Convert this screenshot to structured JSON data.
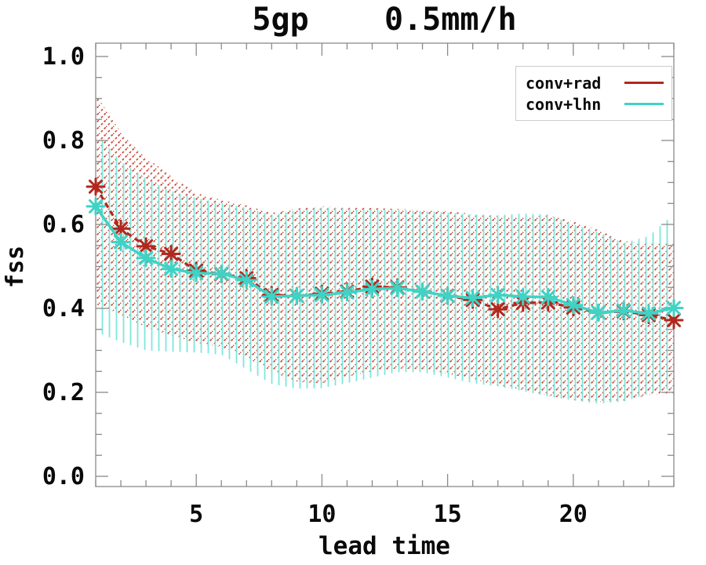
{
  "title": "5gp    0.5mm/h",
  "x_axis": {
    "label": "lead time",
    "major_ticks": [
      5,
      10,
      15,
      20
    ],
    "minor_tick_step": 1
  },
  "y_axis": {
    "label": "fss",
    "major_ticks": [
      0.0,
      0.2,
      0.4,
      0.6,
      0.8,
      1.0
    ],
    "minor_tick_step": 0.05
  },
  "legend": {
    "items": [
      {
        "label": "conv+rad",
        "color": "#b2281e"
      },
      {
        "label": "conv+lhn",
        "color": "#3fd3c5"
      }
    ]
  },
  "chart_data": {
    "type": "line",
    "title": "5gp    0.5mm/h",
    "xlabel": "lead time",
    "ylabel": "fss",
    "xlim": [
      1,
      24
    ],
    "ylim": [
      0.0,
      1.0
    ],
    "grid": false,
    "legend_position": "upper right",
    "x": [
      1,
      2,
      3,
      4,
      5,
      6,
      7,
      8,
      9,
      10,
      11,
      12,
      13,
      14,
      15,
      16,
      17,
      18,
      19,
      20,
      21,
      22,
      23,
      24
    ],
    "series": [
      {
        "name": "conv+rad",
        "color": "#b2281e",
        "line_style": "dashed",
        "marker": "asterisk",
        "hatch": "diagonal",
        "hatch_color": "#cc4a3a",
        "values": [
          0.69,
          0.59,
          0.548,
          0.53,
          0.49,
          0.482,
          0.472,
          0.432,
          0.43,
          0.435,
          0.44,
          0.452,
          0.45,
          0.44,
          0.43,
          0.42,
          0.398,
          0.413,
          0.414,
          0.402,
          0.39,
          0.393,
          0.384,
          0.372
        ],
        "band_upper": [
          0.91,
          0.82,
          0.76,
          0.715,
          0.675,
          0.658,
          0.645,
          0.627,
          0.638,
          0.643,
          0.641,
          0.639,
          0.637,
          0.634,
          0.631,
          0.625,
          0.619,
          0.617,
          0.622,
          0.607,
          0.587,
          0.56,
          0.556,
          0.558
        ],
        "band_lower": [
          0.41,
          0.385,
          0.355,
          0.335,
          0.318,
          0.308,
          0.283,
          0.25,
          0.225,
          0.222,
          0.238,
          0.25,
          0.257,
          0.255,
          0.244,
          0.232,
          0.216,
          0.206,
          0.192,
          0.182,
          0.177,
          0.18,
          0.194,
          0.196
        ]
      },
      {
        "name": "conv+lhn",
        "color": "#3fd3c5",
        "line_style": "solid",
        "marker": "asterisk",
        "hatch": "vertical",
        "hatch_color": "#7fe6da",
        "values": [
          0.643,
          0.558,
          0.52,
          0.494,
          0.484,
          0.483,
          0.467,
          0.428,
          0.43,
          0.432,
          0.438,
          0.446,
          0.448,
          0.44,
          0.43,
          0.425,
          0.432,
          0.428,
          0.427,
          0.408,
          0.39,
          0.395,
          0.388,
          0.401
        ],
        "band_upper": [
          0.82,
          0.75,
          0.71,
          0.68,
          0.663,
          0.651,
          0.64,
          0.622,
          0.634,
          0.64,
          0.638,
          0.636,
          0.634,
          0.632,
          0.628,
          0.624,
          0.622,
          0.626,
          0.624,
          0.6,
          0.582,
          0.556,
          0.572,
          0.625
        ],
        "band_lower": [
          0.344,
          0.32,
          0.3,
          0.297,
          0.295,
          0.29,
          0.255,
          0.22,
          0.209,
          0.21,
          0.222,
          0.235,
          0.248,
          0.248,
          0.235,
          0.222,
          0.214,
          0.203,
          0.19,
          0.181,
          0.173,
          0.178,
          0.197,
          0.21
        ]
      }
    ]
  }
}
